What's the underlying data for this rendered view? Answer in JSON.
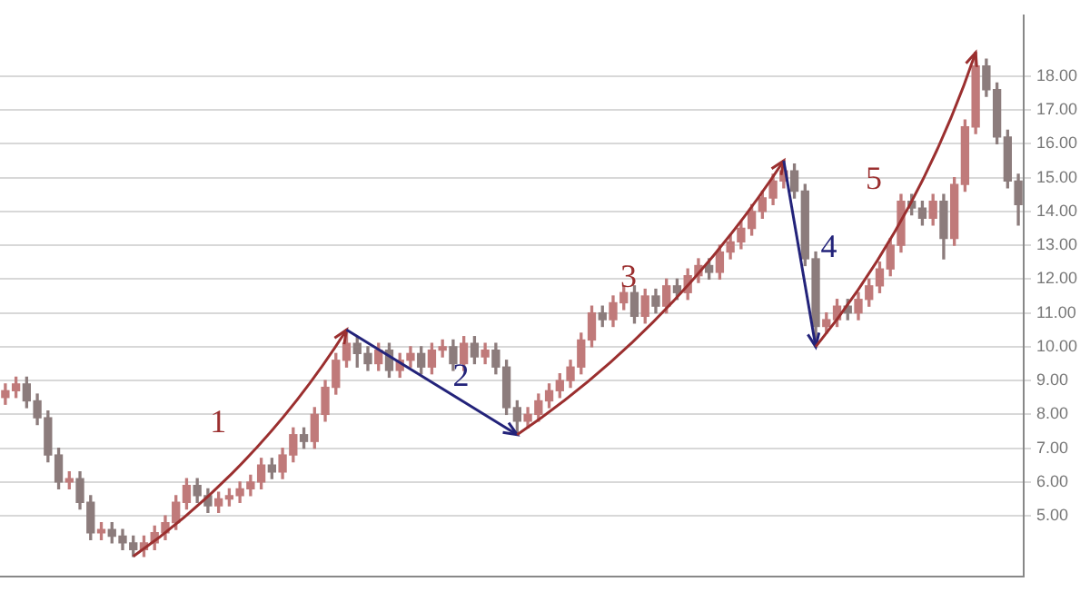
{
  "chart_data": {
    "type": "candlestick",
    "colors": [
      "#c07a7a",
      "#c07a7a",
      "#8c7c7c",
      "#8c7c7c",
      "#8c7c7c",
      "#8c7c7c",
      "#c07a7a",
      "#8c7c7c",
      "#8c7c7c",
      "#c07a7a",
      "#8c7c7c",
      "#8c7c7c",
      "#8c7c7c",
      "#c07a7a",
      "#c07a7a",
      "#c07a7a",
      "#c07a7a",
      "#c07a7a",
      "#8c7c7c",
      "#8c7c7c",
      "#c07a7a",
      "#c07a7a",
      "#c07a7a",
      "#c07a7a",
      "#c07a7a",
      "#8c7c7c",
      "#c07a7a",
      "#c07a7a",
      "#8c7c7c",
      "#c07a7a",
      "#c07a7a",
      "#c07a7a",
      "#c07a7a",
      "#8c7c7c",
      "#8c7c7c",
      "#c07a7a",
      "#8c7c7c",
      "#c07a7a",
      "#c07a7a",
      "#8c7c7c",
      "#c07a7a",
      "#c07a7a",
      "#8c7c7c",
      "#c07a7a",
      "#8c7c7c",
      "#c07a7a",
      "#8c7c7c",
      "#8c7c7c",
      "#8c7c7c",
      "#c07a7a",
      "#c07a7a",
      "#c07a7a",
      "#c07a7a",
      "#c07a7a",
      "#c07a7a",
      "#c07a7a",
      "#8c7c7c",
      "#c07a7a",
      "#c07a7a",
      "#8c7c7c",
      "#c07a7a",
      "#8c7c7c",
      "#c07a7a",
      "#8c7c7c",
      "#c07a7a",
      "#c07a7a",
      "#8c7c7c",
      "#c07a7a",
      "#c07a7a",
      "#c07a7a",
      "#c07a7a",
      "#c07a7a",
      "#c07a7a",
      "#c07a7a",
      "#8c7c7c",
      "#8c7c7c",
      "#8c7c7c",
      "#c07a7a",
      "#c07a7a",
      "#8c7c7c",
      "#c07a7a",
      "#c07a7a",
      "#c07a7a",
      "#c07a7a",
      "#c07a7a",
      "#8c7c7c",
      "#8c7c7c",
      "#c07a7a",
      "#8c7c7c",
      "#c07a7a",
      "#c07a7a",
      "#c07a7a",
      "#8c7c7c",
      "#8c7c7c",
      "#8c7c7c",
      "#8c7c7c"
    ],
    "categories": [
      null,
      null,
      null,
      null,
      null,
      null,
      null,
      null,
      null,
      null,
      null,
      null,
      null,
      null,
      null,
      null,
      null,
      null,
      null,
      null,
      null,
      null,
      null,
      null,
      null,
      null,
      null,
      null,
      null,
      null,
      null,
      null,
      null,
      null,
      null,
      null,
      null,
      null,
      null,
      null,
      null,
      null,
      null,
      null,
      null,
      null,
      null,
      null,
      null,
      null,
      null,
      null,
      null,
      null,
      null,
      null,
      null,
      null,
      null,
      null,
      null,
      null,
      null,
      null,
      null,
      null,
      null,
      null,
      null,
      null,
      null,
      null,
      null,
      null,
      null,
      null,
      null,
      null,
      null,
      null,
      null,
      null,
      null,
      null,
      null,
      null,
      null,
      null,
      null,
      null,
      null,
      null,
      null,
      null,
      null,
      null
    ],
    "ohlc": [
      [
        8.5,
        8.9,
        8.3,
        8.7
      ],
      [
        8.7,
        9.1,
        8.5,
        8.9
      ],
      [
        8.9,
        9.1,
        8.2,
        8.4
      ],
      [
        8.4,
        8.6,
        7.7,
        7.9
      ],
      [
        7.9,
        8.1,
        6.6,
        6.8
      ],
      [
        6.8,
        7.0,
        5.8,
        6.0
      ],
      [
        6.0,
        6.3,
        5.8,
        6.1
      ],
      [
        6.1,
        6.3,
        5.2,
        5.4
      ],
      [
        5.4,
        5.6,
        4.3,
        4.5
      ],
      [
        4.5,
        4.8,
        4.3,
        4.6
      ],
      [
        4.6,
        4.8,
        4.2,
        4.4
      ],
      [
        4.4,
        4.6,
        4.0,
        4.2
      ],
      [
        4.2,
        4.4,
        3.8,
        4.0
      ],
      [
        4.0,
        4.4,
        3.8,
        4.2
      ],
      [
        4.2,
        4.7,
        4.0,
        4.5
      ],
      [
        4.5,
        5.0,
        4.3,
        4.8
      ],
      [
        4.8,
        5.6,
        4.6,
        5.4
      ],
      [
        5.4,
        6.1,
        5.2,
        5.9
      ],
      [
        5.9,
        6.1,
        5.4,
        5.6
      ],
      [
        5.6,
        5.8,
        5.1,
        5.3
      ],
      [
        5.3,
        5.7,
        5.1,
        5.5
      ],
      [
        5.5,
        5.8,
        5.3,
        5.6
      ],
      [
        5.6,
        6.0,
        5.4,
        5.8
      ],
      [
        5.8,
        6.2,
        5.6,
        6.0
      ],
      [
        6.0,
        6.7,
        5.8,
        6.5
      ],
      [
        6.5,
        6.7,
        6.1,
        6.3
      ],
      [
        6.3,
        7.0,
        6.1,
        6.8
      ],
      [
        6.8,
        7.6,
        6.6,
        7.4
      ],
      [
        7.4,
        7.6,
        7.0,
        7.2
      ],
      [
        7.2,
        8.2,
        7.0,
        8.0
      ],
      [
        8.0,
        9.0,
        7.8,
        8.8
      ],
      [
        8.8,
        9.8,
        8.6,
        9.6
      ],
      [
        9.6,
        10.5,
        9.4,
        10.1
      ],
      [
        10.1,
        10.3,
        9.4,
        9.8
      ],
      [
        9.8,
        10.0,
        9.3,
        9.5
      ],
      [
        9.5,
        10.1,
        9.3,
        9.9
      ],
      [
        9.9,
        10.1,
        9.1,
        9.3
      ],
      [
        9.3,
        9.8,
        9.1,
        9.6
      ],
      [
        9.6,
        10.0,
        9.4,
        9.8
      ],
      [
        9.8,
        10.0,
        9.2,
        9.4
      ],
      [
        9.4,
        10.1,
        9.2,
        9.9
      ],
      [
        9.9,
        10.2,
        9.7,
        10.0
      ],
      [
        10.0,
        10.2,
        9.3,
        9.5
      ],
      [
        9.5,
        10.3,
        9.3,
        10.1
      ],
      [
        10.1,
        10.3,
        9.5,
        9.7
      ],
      [
        9.7,
        10.1,
        9.5,
        9.9
      ],
      [
        9.9,
        10.1,
        9.2,
        9.4
      ],
      [
        9.4,
        9.6,
        8.0,
        8.2
      ],
      [
        8.2,
        8.4,
        7.4,
        7.8
      ],
      [
        7.8,
        8.2,
        7.6,
        8.0
      ],
      [
        8.0,
        8.6,
        7.8,
        8.4
      ],
      [
        8.4,
        8.9,
        8.2,
        8.7
      ],
      [
        8.7,
        9.2,
        8.5,
        9.0
      ],
      [
        9.0,
        9.6,
        8.8,
        9.4
      ],
      [
        9.4,
        10.4,
        9.2,
        10.2
      ],
      [
        10.2,
        11.2,
        10.0,
        11.0
      ],
      [
        11.0,
        11.2,
        10.6,
        10.8
      ],
      [
        10.8,
        11.5,
        10.6,
        11.3
      ],
      [
        11.3,
        11.8,
        11.1,
        11.6
      ],
      [
        11.6,
        11.8,
        10.7,
        10.9
      ],
      [
        10.9,
        11.7,
        10.7,
        11.5
      ],
      [
        11.5,
        11.7,
        11.0,
        11.2
      ],
      [
        11.2,
        12.0,
        11.0,
        11.8
      ],
      [
        11.8,
        12.0,
        11.4,
        11.6
      ],
      [
        11.6,
        12.3,
        11.4,
        12.1
      ],
      [
        12.1,
        12.6,
        11.9,
        12.4
      ],
      [
        12.4,
        12.6,
        12.0,
        12.2
      ],
      [
        12.2,
        13.0,
        12.0,
        12.8
      ],
      [
        12.8,
        13.3,
        12.6,
        13.1
      ],
      [
        13.1,
        13.7,
        12.9,
        13.5
      ],
      [
        13.5,
        14.2,
        13.3,
        14.0
      ],
      [
        14.0,
        14.6,
        13.8,
        14.4
      ],
      [
        14.4,
        15.1,
        14.2,
        14.9
      ],
      [
        14.9,
        15.5,
        14.7,
        15.2
      ],
      [
        15.2,
        15.4,
        14.4,
        14.6
      ],
      [
        14.6,
        14.8,
        12.4,
        12.6
      ],
      [
        12.6,
        12.8,
        10.0,
        10.6
      ],
      [
        10.6,
        11.0,
        10.4,
        10.8
      ],
      [
        10.8,
        11.4,
        10.6,
        11.2
      ],
      [
        11.2,
        11.4,
        10.8,
        11.0
      ],
      [
        11.0,
        11.6,
        10.8,
        11.4
      ],
      [
        11.4,
        12.0,
        11.2,
        11.8
      ],
      [
        11.8,
        12.5,
        11.6,
        12.3
      ],
      [
        12.3,
        13.2,
        12.1,
        13.0
      ],
      [
        13.0,
        14.5,
        12.8,
        14.3
      ],
      [
        14.3,
        14.5,
        13.9,
        14.1
      ],
      [
        14.1,
        14.3,
        13.6,
        13.8
      ],
      [
        13.8,
        14.5,
        13.6,
        14.3
      ],
      [
        14.3,
        14.5,
        12.6,
        13.2
      ],
      [
        13.2,
        15.0,
        13.0,
        14.8
      ],
      [
        14.8,
        16.7,
        14.6,
        16.5
      ],
      [
        16.5,
        18.7,
        16.3,
        18.3
      ],
      [
        18.3,
        18.5,
        17.4,
        17.6
      ],
      [
        17.6,
        17.8,
        16.0,
        16.2
      ],
      [
        16.2,
        16.4,
        14.7,
        14.9
      ],
      [
        14.9,
        15.1,
        13.6,
        14.2
      ]
    ],
    "ylim": [
      3.2,
      19.8
    ],
    "yticks": [
      {
        "value": 5,
        "label": "5.00"
      },
      {
        "value": 6,
        "label": "6.00"
      },
      {
        "value": 7,
        "label": "7.00"
      },
      {
        "value": 8,
        "label": "8.00"
      },
      {
        "value": 9,
        "label": "9.00"
      },
      {
        "value": 10,
        "label": "10.00"
      },
      {
        "value": 11,
        "label": "11.00"
      },
      {
        "value": 12,
        "label": "12.00"
      },
      {
        "value": 13,
        "label": "13.00"
      },
      {
        "value": 14,
        "label": "14.00"
      },
      {
        "value": 15,
        "label": "15.00"
      },
      {
        "value": 16,
        "label": "16.00"
      },
      {
        "value": 17,
        "label": "17.00"
      },
      {
        "value": 18,
        "label": "18.00"
      }
    ],
    "grid": "y",
    "tick_labels": "y",
    "annotations": [
      "1",
      "2",
      "3",
      "4",
      "5"
    ]
  }
}
